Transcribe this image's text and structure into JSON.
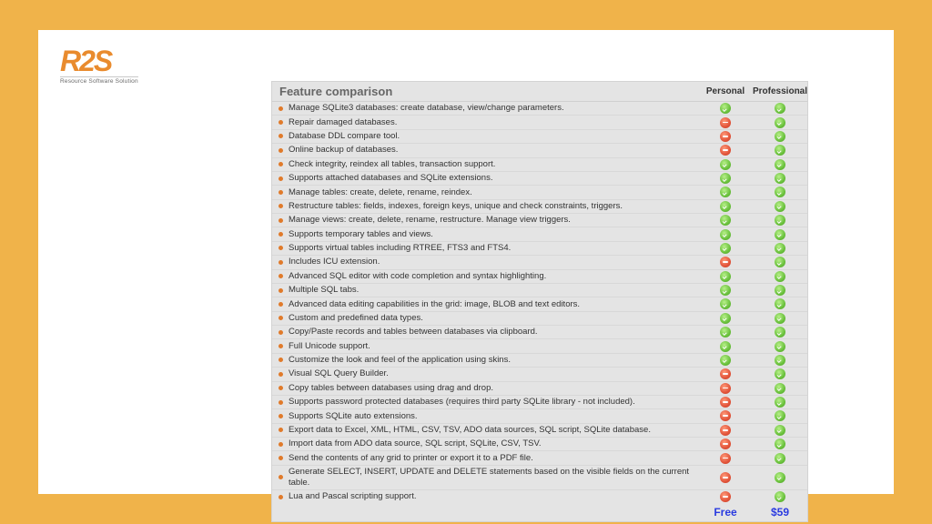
{
  "logo": {
    "mark": "R2S",
    "sub": "Resource Software Solution"
  },
  "table": {
    "title": "Feature comparison",
    "col_personal": "Personal",
    "col_professional": "Professional",
    "rows": [
      {
        "feature": "Manage SQLite3 databases: create database, view/change parameters.",
        "personal": true,
        "professional": true
      },
      {
        "feature": "Repair damaged databases.",
        "personal": false,
        "professional": true
      },
      {
        "feature": "Database DDL compare tool.",
        "personal": false,
        "professional": true
      },
      {
        "feature": "Online backup of databases.",
        "personal": false,
        "professional": true
      },
      {
        "feature": "Check integrity, reindex all tables, transaction support.",
        "personal": true,
        "professional": true
      },
      {
        "feature": "Supports attached databases and SQLite extensions.",
        "personal": true,
        "professional": true
      },
      {
        "feature": "Manage tables: create, delete, rename, reindex.",
        "personal": true,
        "professional": true
      },
      {
        "feature": "Restructure tables: fields, indexes, foreign keys, unique and check constraints, triggers.",
        "personal": true,
        "professional": true
      },
      {
        "feature": "Manage views: create, delete, rename, restructure. Manage view triggers.",
        "personal": true,
        "professional": true
      },
      {
        "feature": "Supports temporary tables and views.",
        "personal": true,
        "professional": true
      },
      {
        "feature": "Supports virtual tables including RTREE, FTS3 and FTS4.",
        "personal": true,
        "professional": true
      },
      {
        "feature": "Includes ICU extension.",
        "personal": false,
        "professional": true
      },
      {
        "feature": "Advanced SQL editor with code completion and syntax highlighting.",
        "personal": true,
        "professional": true
      },
      {
        "feature": "Multiple SQL tabs.",
        "personal": true,
        "professional": true
      },
      {
        "feature": "Advanced data editing capabilities in the grid: image, BLOB and text editors.",
        "personal": true,
        "professional": true
      },
      {
        "feature": "Custom and predefined data types.",
        "personal": true,
        "professional": true
      },
      {
        "feature": "Copy/Paste records and tables between databases via clipboard.",
        "personal": true,
        "professional": true
      },
      {
        "feature": "Full Unicode support.",
        "personal": true,
        "professional": true
      },
      {
        "feature": "Customize the look and feel of the application using skins.",
        "personal": true,
        "professional": true
      },
      {
        "feature": "Visual SQL Query Builder.",
        "personal": false,
        "professional": true
      },
      {
        "feature": "Copy tables between databases using drag and drop.",
        "personal": false,
        "professional": true
      },
      {
        "feature": "Supports password protected databases (requires third party SQLite library - not included).",
        "personal": false,
        "professional": true
      },
      {
        "feature": "Supports SQLite auto extensions.",
        "personal": false,
        "professional": true
      },
      {
        "feature": "Export data to Excel, XML, HTML, CSV, TSV, ADO data sources, SQL script, SQLite database.",
        "personal": false,
        "professional": true
      },
      {
        "feature": "Import data from ADO data source, SQL script, SQLite, CSV, TSV.",
        "personal": false,
        "professional": true
      },
      {
        "feature": "Send the contents of any grid to printer or export it to a PDF file.",
        "personal": false,
        "professional": true
      },
      {
        "feature": "Generate SELECT, INSERT, UPDATE and DELETE statements based on the visible fields on the current table.",
        "personal": false,
        "professional": true
      },
      {
        "feature": "Lua and Pascal scripting support.",
        "personal": false,
        "professional": true
      }
    ],
    "price_personal": "Free",
    "price_professional": "$59"
  },
  "colors": {
    "frame_bg": "#f0b34a",
    "card_bg": "#ffffff",
    "table_bg": "#e4e4e4",
    "yes": "#6ac13c",
    "no": "#e2543a",
    "price_text": "#2a3be0"
  }
}
